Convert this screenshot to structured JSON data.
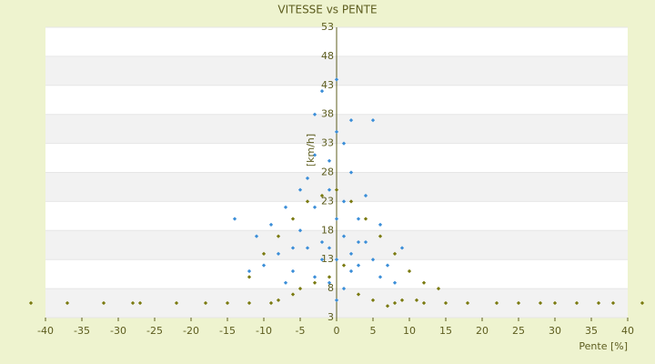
{
  "chart_data": {
    "type": "scatter",
    "title": "VITESSE vs PENTE",
    "xlabel": "Pente [%]",
    "ylabel": "[km/h]",
    "xlim": [
      -40,
      40
    ],
    "xticks": [
      -40,
      -35,
      -30,
      -25,
      -20,
      -15,
      -10,
      -5,
      0,
      5,
      10,
      15,
      20,
      25,
      30,
      35,
      40
    ],
    "ylim": [
      3,
      53
    ],
    "yticks": [
      3,
      8,
      13,
      18,
      23,
      28,
      33,
      38,
      43,
      48,
      53
    ],
    "grid": true,
    "series": [
      {
        "color": "#3b8ed8",
        "x": [
          -5,
          -3,
          -1,
          0,
          1,
          2,
          3,
          -2,
          -4,
          -6,
          4,
          5,
          -1,
          0,
          -3,
          1,
          -2,
          0,
          2,
          -7,
          -9,
          -11,
          -14,
          6,
          7,
          8,
          -8,
          -10,
          3,
          4,
          -1,
          0,
          1,
          2,
          -2,
          -4,
          -5,
          5,
          2,
          -3,
          -6,
          -7,
          -12,
          9,
          1,
          0,
          -1,
          3,
          -3,
          6
        ],
        "y": [
          18,
          22,
          25,
          20,
          17,
          14,
          12,
          13,
          15,
          11,
          16,
          13,
          30,
          35,
          38,
          33,
          42,
          44,
          28,
          22,
          19,
          17,
          20,
          10,
          12,
          9,
          14,
          12,
          20,
          24,
          9,
          6,
          8,
          11,
          16,
          27,
          25,
          37,
          37,
          31,
          15,
          9,
          11,
          15,
          23,
          13,
          15,
          16,
          10,
          19
        ]
      },
      {
        "color": "#7a7a10",
        "x": [
          -42,
          -37,
          -32,
          -28,
          -27,
          -22,
          -18,
          -15,
          -12,
          -9,
          8,
          12,
          15,
          18,
          22,
          25,
          28,
          30,
          33,
          36,
          38,
          42,
          -12,
          -10,
          -8,
          -6,
          -4,
          -2,
          0,
          2,
          4,
          6,
          8,
          10,
          12,
          14,
          -5,
          -3,
          -1,
          1,
          3,
          5,
          7,
          -8,
          -6,
          9,
          11
        ],
        "y": [
          5.5,
          5.5,
          5.5,
          5.5,
          5.5,
          5.5,
          5.5,
          5.5,
          5.5,
          5.5,
          5.5,
          5.5,
          5.5,
          5.5,
          5.5,
          5.5,
          5.5,
          5.5,
          5.5,
          5.5,
          5.5,
          5.5,
          10,
          14,
          17,
          20,
          23,
          24,
          25,
          23,
          20,
          17,
          14,
          11,
          9,
          8,
          8,
          9,
          10,
          12,
          7,
          6,
          5,
          6,
          7,
          6,
          6
        ]
      }
    ]
  }
}
